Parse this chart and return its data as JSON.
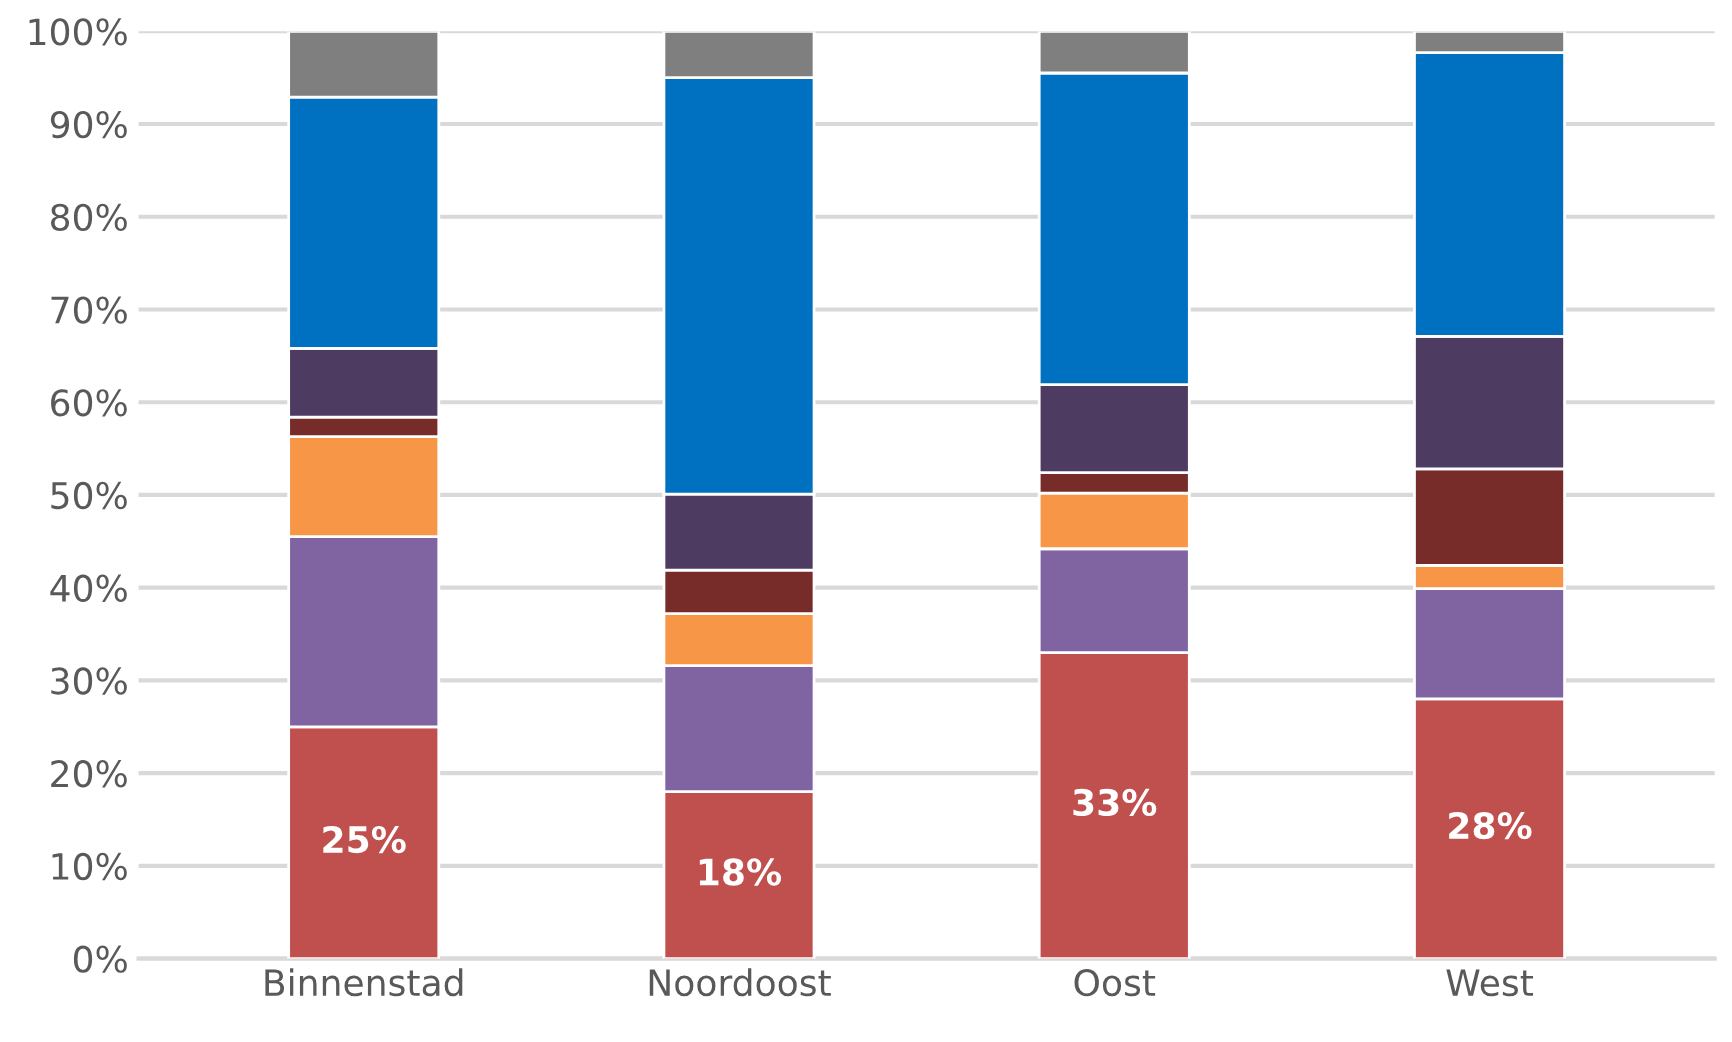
{
  "chart_data": {
    "type": "bar",
    "stacked": true,
    "categories": [
      "Binnenstad",
      "Noordoost",
      "Oost",
      "West"
    ],
    "series": [
      {
        "color": "#c0504d",
        "values": [
          25,
          18,
          33,
          28
        ],
        "value_labels": [
          "25%",
          "18%",
          "33%",
          "28%"
        ]
      },
      {
        "color": "#8064a2",
        "values": [
          20.5,
          13.6,
          11.2,
          11.9
        ]
      },
      {
        "color": "#f79646",
        "values": [
          10.8,
          5.6,
          6.0,
          2.5
        ]
      },
      {
        "color": "#772c2a",
        "values": [
          2.1,
          4.7,
          2.2,
          10.4
        ]
      },
      {
        "color": "#4e3b61",
        "values": [
          7.4,
          8.2,
          9.5,
          14.3
        ]
      },
      {
        "color": "#0070c0",
        "values": [
          27.1,
          44.9,
          33.6,
          30.6
        ]
      },
      {
        "color": "#7f7f7f",
        "values": [
          7.1,
          5.0,
          4.5,
          2.3
        ]
      }
    ],
    "ylim": [
      0,
      100
    ],
    "yticks": [
      {
        "value": 0,
        "label": "0%"
      },
      {
        "value": 10,
        "label": "10%"
      },
      {
        "value": 20,
        "label": "20%"
      },
      {
        "value": 30,
        "label": "30%"
      },
      {
        "value": 40,
        "label": "40%"
      },
      {
        "value": 50,
        "label": "50%"
      },
      {
        "value": 60,
        "label": "60%"
      },
      {
        "value": 70,
        "label": "70%"
      },
      {
        "value": 80,
        "label": "80%"
      },
      {
        "value": 90,
        "label": "90%"
      },
      {
        "value": 100,
        "label": "100%"
      }
    ],
    "grid": "y",
    "legend": false
  }
}
